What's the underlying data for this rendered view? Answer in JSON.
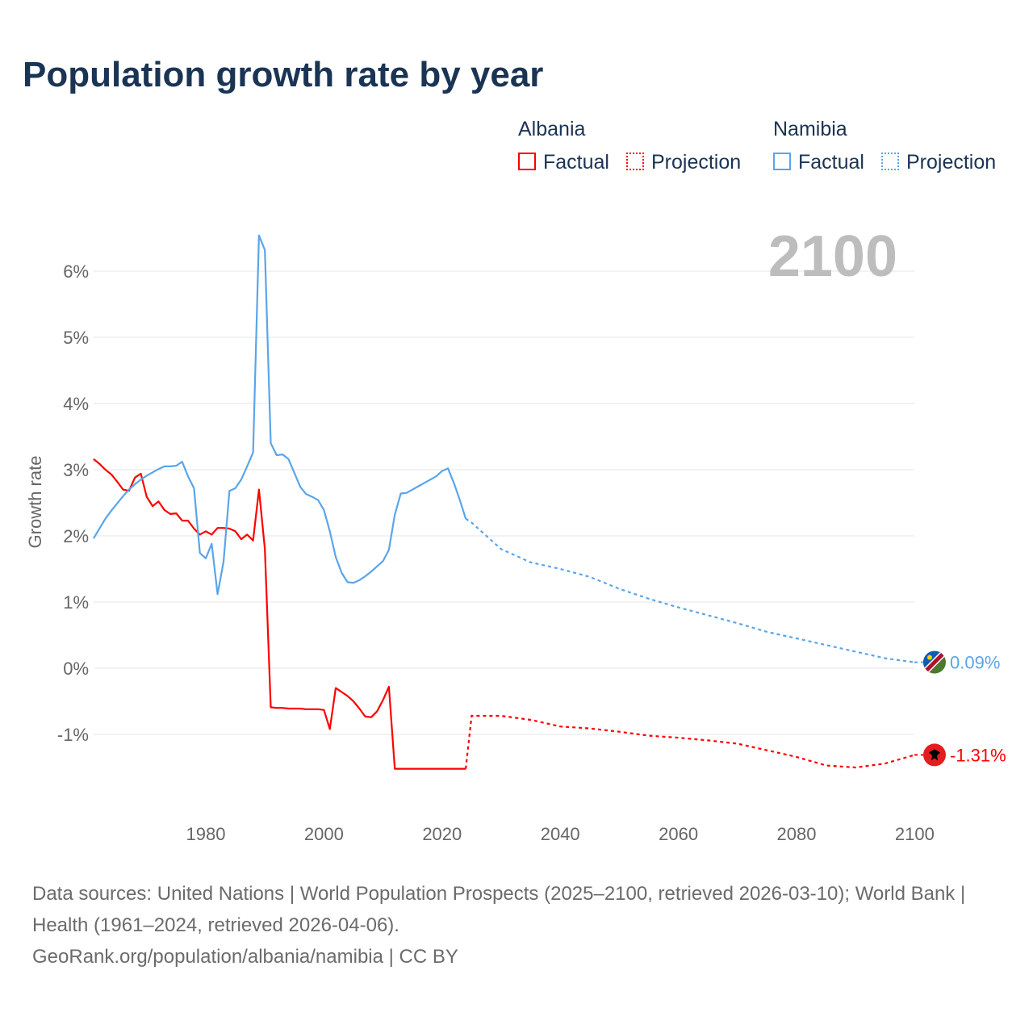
{
  "title": "Population growth rate by year",
  "legend": {
    "groups": [
      {
        "name": "Albania",
        "factual": "Factual",
        "projection": "Projection",
        "color": "#ff0000"
      },
      {
        "name": "Namibia",
        "factual": "Factual",
        "projection": "Projection",
        "color": "#5aa5ea"
      }
    ]
  },
  "year_label": "2100",
  "footer": {
    "sources": "Data sources: United Nations | World Population Prospects (2025–2100, retrieved 2026-03-10); World Bank | Health (1961–2024, retrieved 2026-04-06).",
    "credit": "GeoRank.org/population/albania/namibia | CC BY"
  },
  "chart_data": {
    "type": "line",
    "title": "Population growth rate by year",
    "ylabel": "Growth rate",
    "xlabel": "",
    "xlim": [
      1961,
      2100
    ],
    "ylim": [
      -2,
      6.6
    ],
    "xticks": [
      1980,
      2000,
      2020,
      2040,
      2060,
      2080,
      2100
    ],
    "yticks": [
      -1,
      0,
      1,
      2,
      3,
      4,
      5,
      6
    ],
    "ytick_labels": [
      "-1%",
      "0%",
      "1%",
      "2%",
      "3%",
      "4%",
      "5%",
      "6%"
    ],
    "grid": true,
    "series": [
      {
        "name": "Albania",
        "color": "#ff0000",
        "end_label": "-1.31%",
        "factual": {
          "x_start": 1961,
          "values": [
            3.16,
            3.09,
            3.0,
            2.93,
            2.82,
            2.7,
            2.68,
            2.88,
            2.94,
            2.59,
            2.45,
            2.52,
            2.39,
            2.33,
            2.34,
            2.23,
            2.23,
            2.11,
            2.02,
            2.07,
            2.02,
            2.12,
            2.12,
            2.11,
            2.07,
            1.95,
            2.02,
            1.93,
            2.7,
            1.8,
            -0.59,
            -0.6,
            -0.6,
            -0.61,
            -0.61,
            -0.61,
            -0.62,
            -0.62,
            -0.62,
            -0.63,
            -0.92,
            -0.3,
            -0.36,
            -0.42,
            -0.5,
            -0.61,
            -0.73,
            -0.74,
            -0.65,
            -0.48,
            -0.28,
            -1.52,
            -1.52,
            -1.52,
            -1.52,
            -1.52,
            -1.52,
            -1.52,
            -1.52,
            -1.52,
            -1.52,
            -1.52,
            -1.52,
            -1.52
          ]
        },
        "projection": {
          "x": [
            2024,
            2025,
            2030,
            2035,
            2040,
            2045,
            2050,
            2055,
            2060,
            2065,
            2070,
            2075,
            2080,
            2085,
            2090,
            2095,
            2100
          ],
          "values": [
            -1.52,
            -0.72,
            -0.72,
            -0.78,
            -0.88,
            -0.91,
            -0.96,
            -1.02,
            -1.05,
            -1.09,
            -1.14,
            -1.24,
            -1.34,
            -1.47,
            -1.5,
            -1.44,
            -1.31
          ]
        }
      },
      {
        "name": "Namibia",
        "color": "#5aa5ea",
        "end_label": "0.09%",
        "factual": {
          "x_start": 1961,
          "values": [
            1.96,
            2.11,
            2.26,
            2.38,
            2.49,
            2.6,
            2.7,
            2.78,
            2.85,
            2.91,
            2.96,
            3.01,
            3.05,
            3.05,
            3.06,
            3.12,
            2.9,
            2.72,
            1.74,
            1.66,
            1.88,
            1.12,
            1.61,
            2.68,
            2.72,
            2.85,
            3.05,
            3.26,
            6.54,
            6.32,
            3.4,
            3.22,
            3.23,
            3.16,
            2.95,
            2.74,
            2.63,
            2.59,
            2.54,
            2.39,
            2.07,
            1.68,
            1.44,
            1.3,
            1.29,
            1.33,
            1.39,
            1.46,
            1.54,
            1.62,
            1.79,
            2.32,
            2.64,
            2.65,
            2.7,
            2.75,
            2.8,
            2.85,
            2.9,
            2.98,
            3.02,
            2.8,
            2.54,
            2.26
          ]
        },
        "projection": {
          "x": [
            2024,
            2025,
            2030,
            2035,
            2040,
            2045,
            2050,
            2055,
            2060,
            2065,
            2070,
            2075,
            2080,
            2085,
            2090,
            2095,
            2100
          ],
          "values": [
            2.26,
            2.2,
            1.8,
            1.6,
            1.5,
            1.38,
            1.2,
            1.05,
            0.92,
            0.8,
            0.68,
            0.55,
            0.45,
            0.35,
            0.25,
            0.15,
            0.09
          ]
        }
      }
    ]
  }
}
